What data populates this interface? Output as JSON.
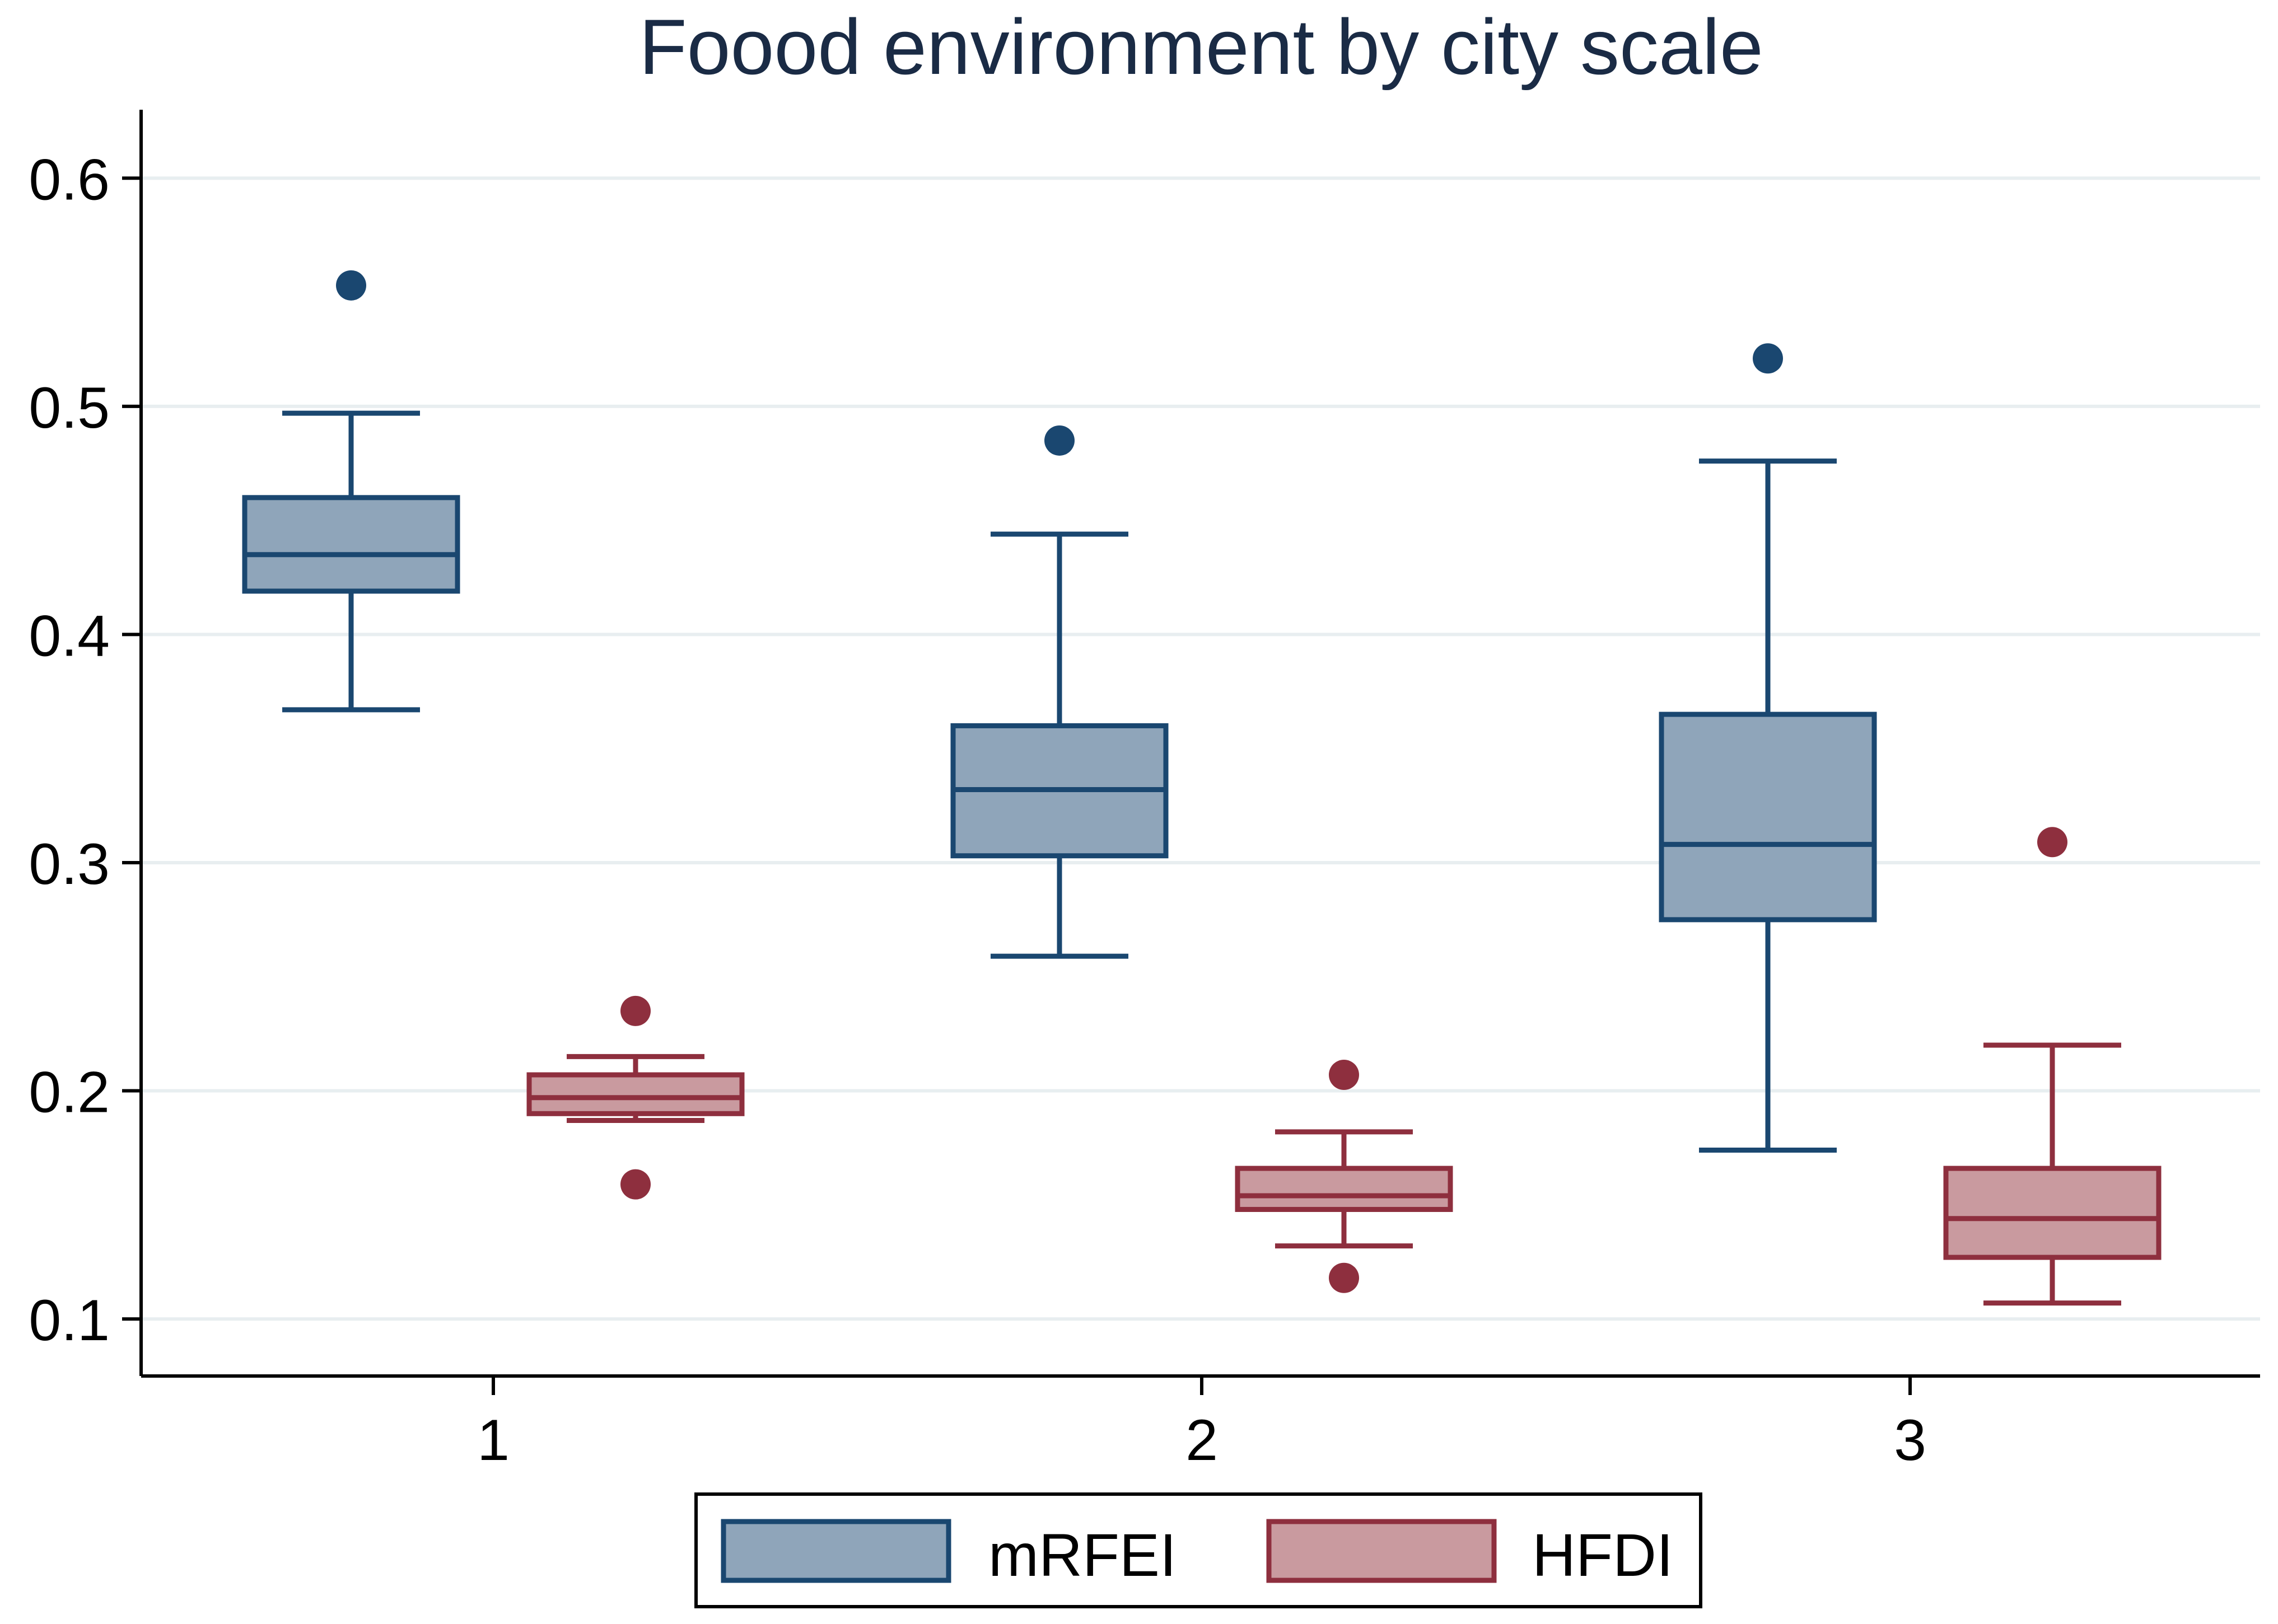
{
  "colors": {
    "mrfei_fill": "#8fa5ba",
    "mrfei_stroke": "#1a4770",
    "hfdi_fill": "#c99a9f",
    "hfdi_stroke": "#8e2f3e",
    "gridline": "#e8eef0",
    "axis": "#000000",
    "title": "#1a2b45",
    "background": "#ffffff"
  },
  "chart_data": {
    "type": "boxplot",
    "title": "Foood environment by city scale",
    "xlabel": "",
    "ylabel": "",
    "ylim": [
      0.075,
      0.63
    ],
    "y_ticks": [
      0.1,
      0.2,
      0.3,
      0.4,
      0.5,
      0.6
    ],
    "y_tick_labels": [
      "0.1",
      "0.2",
      "0.3",
      "0.4",
      "0.5",
      "0.6"
    ],
    "grid": true,
    "categories": [
      "1",
      "2",
      "3"
    ],
    "legend": {
      "position": "bottom",
      "entries": [
        "mRFEI",
        "HFDI"
      ]
    },
    "series": [
      {
        "name": "mRFEI",
        "color_key": "mrfei",
        "boxes": [
          {
            "category": "1",
            "whisker_low": 0.367,
            "q1": 0.419,
            "median": 0.435,
            "q3": 0.46,
            "whisker_high": 0.497,
            "outliers": [
              0.553
            ]
          },
          {
            "category": "2",
            "whisker_low": 0.259,
            "q1": 0.303,
            "median": 0.332,
            "q3": 0.36,
            "whisker_high": 0.444,
            "outliers": [
              0.485
            ]
          },
          {
            "category": "3",
            "whisker_low": 0.174,
            "q1": 0.275,
            "median": 0.308,
            "q3": 0.365,
            "whisker_high": 0.476,
            "outliers": [
              0.521
            ]
          }
        ]
      },
      {
        "name": "HFDI",
        "color_key": "hfdi",
        "boxes": [
          {
            "category": "1",
            "whisker_low": 0.187,
            "q1": 0.19,
            "median": 0.197,
            "q3": 0.207,
            "whisker_high": 0.215,
            "outliers": [
              0.235,
              0.159
            ]
          },
          {
            "category": "2",
            "whisker_low": 0.132,
            "q1": 0.148,
            "median": 0.154,
            "q3": 0.166,
            "whisker_high": 0.182,
            "outliers": [
              0.207,
              0.118
            ]
          },
          {
            "category": "3",
            "whisker_low": 0.107,
            "q1": 0.127,
            "median": 0.144,
            "q3": 0.166,
            "whisker_high": 0.22,
            "outliers": [
              0.309
            ]
          }
        ]
      }
    ]
  }
}
